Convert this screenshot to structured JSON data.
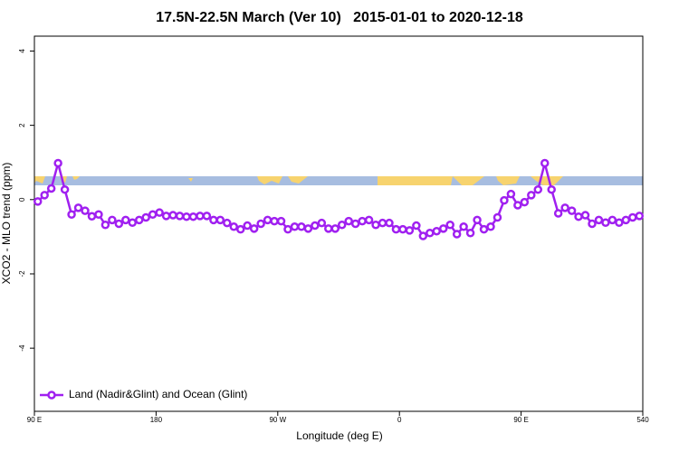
{
  "chart_data": {
    "type": "line",
    "title": "17.5N-22.5N March (Ver 10)   2015-01-01 to 2020-12-18",
    "xlabel": "Longitude (deg E)",
    "ylabel": "XCO2 - MLO trend (ppm)",
    "x": [
      92.5,
      97.5,
      102.5,
      107.5,
      112.5,
      117.5,
      122.5,
      127.5,
      132.5,
      137.5,
      142.5,
      147.5,
      152.5,
      157.5,
      162.5,
      167.5,
      172.5,
      177.5,
      182.5,
      187.5,
      192.5,
      197.5,
      202.5,
      207.5,
      212.5,
      217.5,
      222.5,
      227.5,
      232.5,
      237.5,
      242.5,
      247.5,
      252.5,
      257.5,
      262.5,
      267.5,
      272.5,
      277.5,
      282.5,
      287.5,
      292.5,
      297.5,
      302.5,
      307.5,
      312.5,
      317.5,
      322.5,
      327.5,
      332.5,
      337.5,
      342.5,
      347.5,
      352.5,
      357.5,
      362.5,
      367.5,
      372.5,
      377.5,
      382.5,
      387.5,
      392.5,
      397.5,
      402.5,
      407.5,
      412.5,
      417.5,
      422.5,
      427.5,
      432.5,
      437.5,
      442.5,
      447.5,
      452.5,
      457.5,
      462.5,
      467.5,
      472.5,
      477.5,
      482.5,
      487.5,
      492.5,
      497.5,
      502.5,
      507.5,
      512.5,
      517.5,
      522.5,
      527.5,
      532.5,
      537.5
    ],
    "series": [
      {
        "name": "Land (Nadir&Glint) and Ocean (Glint)",
        "color": "#a020f0",
        "values": [
          -0.05,
          0.12,
          0.3,
          0.98,
          0.27,
          -0.4,
          -0.22,
          -0.3,
          -0.45,
          -0.4,
          -0.68,
          -0.55,
          -0.65,
          -0.55,
          -0.62,
          -0.55,
          -0.48,
          -0.4,
          -0.35,
          -0.44,
          -0.42,
          -0.44,
          -0.46,
          -0.46,
          -0.44,
          -0.44,
          -0.55,
          -0.55,
          -0.63,
          -0.73,
          -0.8,
          -0.7,
          -0.78,
          -0.65,
          -0.55,
          -0.58,
          -0.58,
          -0.8,
          -0.73,
          -0.73,
          -0.78,
          -0.7,
          -0.63,
          -0.78,
          -0.78,
          -0.68,
          -0.58,
          -0.65,
          -0.58,
          -0.55,
          -0.68,
          -0.63,
          -0.63,
          -0.8,
          -0.8,
          -0.83,
          -0.7,
          -0.98,
          -0.9,
          -0.85,
          -0.78,
          -0.68,
          -0.93,
          -0.73,
          -0.9,
          -0.55,
          -0.8,
          -0.73,
          -0.48,
          -0.02,
          0.15,
          -0.15,
          -0.07,
          0.12,
          0.27,
          0.98,
          0.27,
          -0.37,
          -0.22,
          -0.3,
          -0.46,
          -0.42,
          -0.65,
          -0.55,
          -0.62,
          -0.55,
          -0.62,
          -0.55,
          -0.48,
          -0.44
        ]
      }
    ],
    "xlim": [
      90,
      540
    ],
    "xticks": [
      {
        "value": 90,
        "label": "90 E"
      },
      180,
      {
        "value": 270,
        "label": "90 W"
      },
      {
        "value": 360,
        "label": "0"
      },
      {
        "value": 450,
        "label": "90 E"
      },
      540
    ],
    "ylim": [
      -5.7,
      4.4
    ],
    "yticks": [
      -4,
      -2,
      0,
      2,
      4
    ],
    "legend": "bottom-left"
  }
}
